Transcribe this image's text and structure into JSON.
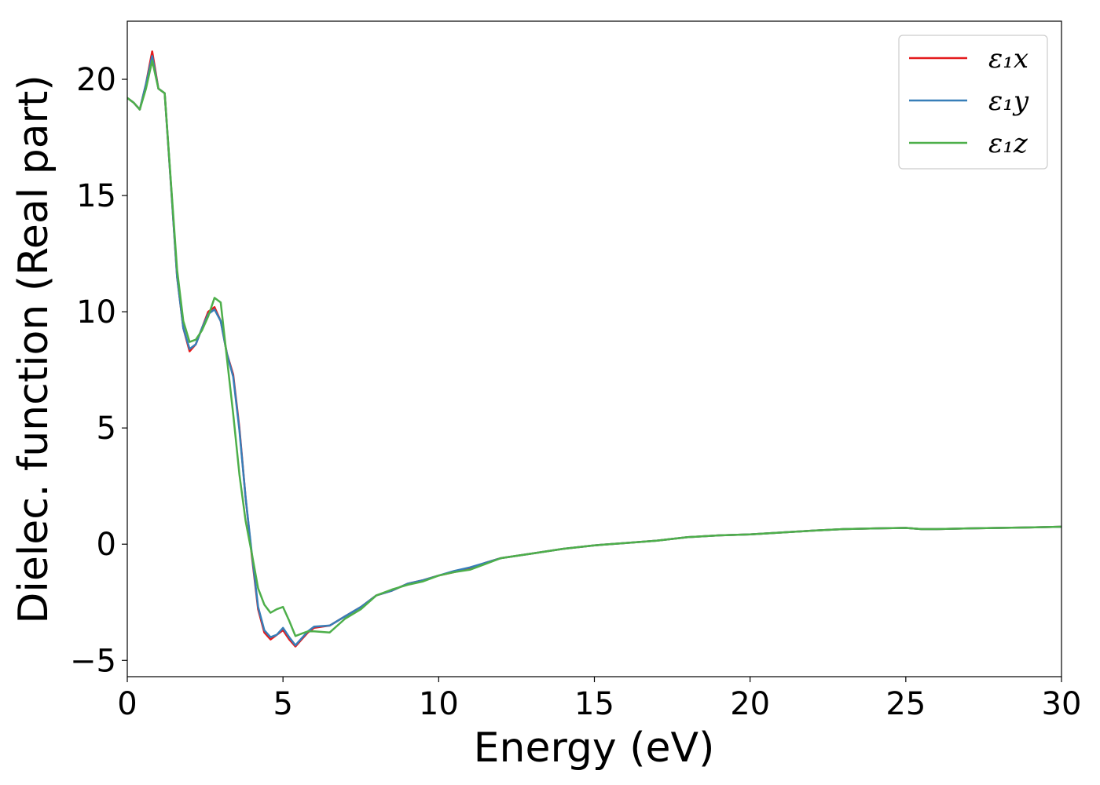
{
  "chart_data": {
    "type": "line",
    "title": "",
    "xlabel": "Energy (eV)",
    "ylabel": "Dielec. function (Real part)",
    "xlim": [
      0,
      30
    ],
    "ylim": [
      -5.7,
      22.5
    ],
    "xticks": [
      0,
      5,
      10,
      15,
      20,
      25,
      30
    ],
    "yticks": [
      -5,
      0,
      5,
      10,
      15,
      20
    ],
    "xtick_labels": [
      "0",
      "5",
      "10",
      "15",
      "20",
      "25",
      "30"
    ],
    "ytick_labels": [
      "−5",
      "0",
      "5",
      "10",
      "15",
      "20"
    ],
    "grid": false,
    "legend_position": "top-right",
    "series": [
      {
        "name": "ε₁x",
        "color": "#e41a1c",
        "x": [
          0,
          0.2,
          0.4,
          0.6,
          0.8,
          1.0,
          1.2,
          1.4,
          1.6,
          1.8,
          2.0,
          2.2,
          2.4,
          2.6,
          2.8,
          3.0,
          3.2,
          3.4,
          3.6,
          3.8,
          4.0,
          4.2,
          4.4,
          4.6,
          4.8,
          5.0,
          5.2,
          5.4,
          5.6,
          5.8,
          6.0,
          6.5,
          7.0,
          7.5,
          8.0,
          8.5,
          9.0,
          9.5,
          10,
          10.5,
          11,
          11.5,
          12,
          13,
          14,
          15,
          16,
          17,
          18,
          19,
          20,
          21,
          22,
          23,
          24,
          25,
          25.5,
          26,
          27,
          28,
          29,
          30
        ],
        "values": [
          19.2,
          19.0,
          18.7,
          19.8,
          21.2,
          19.6,
          19.4,
          15.5,
          11.5,
          9.3,
          8.3,
          8.6,
          9.3,
          10.0,
          10.2,
          9.6,
          8.2,
          7.3,
          5.0,
          2.0,
          -0.5,
          -2.8,
          -3.8,
          -4.1,
          -3.9,
          -3.7,
          -4.1,
          -4.4,
          -4.1,
          -3.8,
          -3.6,
          -3.5,
          -3.1,
          -2.7,
          -2.2,
          -2.0,
          -1.7,
          -1.55,
          -1.35,
          -1.2,
          -1.05,
          -0.8,
          -0.6,
          -0.4,
          -0.2,
          -0.05,
          0.05,
          0.15,
          0.3,
          0.38,
          0.42,
          0.5,
          0.58,
          0.65,
          0.68,
          0.7,
          0.65,
          0.65,
          0.68,
          0.7,
          0.72,
          0.75
        ]
      },
      {
        "name": "ε₁y",
        "color": "#377eb8",
        "x": [
          0,
          0.2,
          0.4,
          0.6,
          0.8,
          1.0,
          1.2,
          1.4,
          1.6,
          1.8,
          2.0,
          2.2,
          2.4,
          2.6,
          2.8,
          3.0,
          3.2,
          3.4,
          3.6,
          3.8,
          4.0,
          4.2,
          4.4,
          4.6,
          4.8,
          5.0,
          5.2,
          5.4,
          5.6,
          5.8,
          6.0,
          6.5,
          7.0,
          7.5,
          8.0,
          8.5,
          9.0,
          9.5,
          10,
          10.5,
          11,
          11.5,
          12,
          13,
          14,
          15,
          16,
          17,
          18,
          19,
          20,
          21,
          22,
          23,
          24,
          25,
          25.5,
          26,
          27,
          28,
          29,
          30
        ],
        "values": [
          19.2,
          19.0,
          18.7,
          19.8,
          21.0,
          19.6,
          19.4,
          15.5,
          11.5,
          9.3,
          8.4,
          8.6,
          9.3,
          9.9,
          10.1,
          9.6,
          8.2,
          7.2,
          4.9,
          2.0,
          -0.4,
          -2.7,
          -3.7,
          -4.0,
          -3.9,
          -3.6,
          -4.0,
          -4.35,
          -4.05,
          -3.75,
          -3.55,
          -3.5,
          -3.1,
          -2.7,
          -2.2,
          -2.0,
          -1.7,
          -1.55,
          -1.35,
          -1.15,
          -1.0,
          -0.8,
          -0.6,
          -0.4,
          -0.2,
          -0.05,
          0.05,
          0.15,
          0.3,
          0.38,
          0.42,
          0.5,
          0.58,
          0.65,
          0.68,
          0.7,
          0.65,
          0.65,
          0.68,
          0.7,
          0.72,
          0.75
        ]
      },
      {
        "name": "ε₁z",
        "color": "#4daf4a",
        "x": [
          0,
          0.2,
          0.4,
          0.6,
          0.8,
          1.0,
          1.2,
          1.4,
          1.6,
          1.8,
          2.0,
          2.2,
          2.4,
          2.6,
          2.8,
          3.0,
          3.2,
          3.4,
          3.6,
          3.8,
          4.0,
          4.2,
          4.4,
          4.6,
          4.8,
          5.0,
          5.2,
          5.4,
          5.6,
          5.8,
          6.0,
          6.5,
          7.0,
          7.5,
          8.0,
          8.5,
          9.0,
          9.5,
          10,
          10.5,
          11,
          11.5,
          12,
          13,
          14,
          15,
          16,
          17,
          18,
          19,
          20,
          21,
          22,
          23,
          24,
          25,
          25.5,
          26,
          27,
          28,
          29,
          30
        ],
        "values": [
          19.2,
          19.0,
          18.7,
          19.6,
          20.8,
          19.6,
          19.4,
          15.6,
          11.8,
          9.6,
          8.7,
          8.8,
          9.2,
          9.8,
          10.6,
          10.4,
          8.0,
          5.6,
          3.0,
          1.0,
          -0.4,
          -1.9,
          -2.6,
          -2.95,
          -2.8,
          -2.7,
          -3.3,
          -3.95,
          -3.85,
          -3.75,
          -3.75,
          -3.8,
          -3.2,
          -2.8,
          -2.2,
          -1.95,
          -1.75,
          -1.6,
          -1.35,
          -1.2,
          -1.1,
          -0.85,
          -0.6,
          -0.4,
          -0.2,
          -0.05,
          0.05,
          0.15,
          0.3,
          0.38,
          0.42,
          0.5,
          0.58,
          0.65,
          0.68,
          0.7,
          0.65,
          0.65,
          0.68,
          0.7,
          0.72,
          0.75
        ]
      }
    ]
  }
}
